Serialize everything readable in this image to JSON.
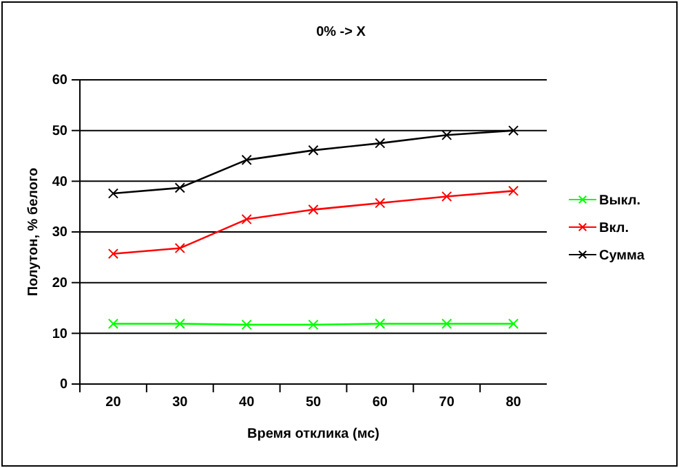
{
  "chart_data": {
    "type": "line",
    "title": "0% -> X",
    "xlabel": "Время отклика (мс)",
    "ylabel": "Полутон, % белого",
    "categories": [
      "20",
      "30",
      "40",
      "50",
      "60",
      "70",
      "80"
    ],
    "ylim": [
      0,
      60
    ],
    "yticks": [
      0,
      10,
      20,
      30,
      40,
      50,
      60
    ],
    "grid": "y",
    "legend": "right",
    "marker": "cross",
    "line_style": "solid",
    "series": [
      {
        "name": "Выкл.",
        "color": "#00ff00",
        "values": [
          11.9,
          11.9,
          11.7,
          11.7,
          11.9,
          11.9,
          11.9
        ]
      },
      {
        "name": "Вкл.",
        "color": "#ff0000",
        "values": [
          25.7,
          26.8,
          32.5,
          34.4,
          35.7,
          37.0,
          38.1
        ]
      },
      {
        "name": "Сумма",
        "color": "#000000",
        "values": [
          37.6,
          38.7,
          44.2,
          46.1,
          47.5,
          49.1,
          50.0
        ]
      }
    ]
  }
}
